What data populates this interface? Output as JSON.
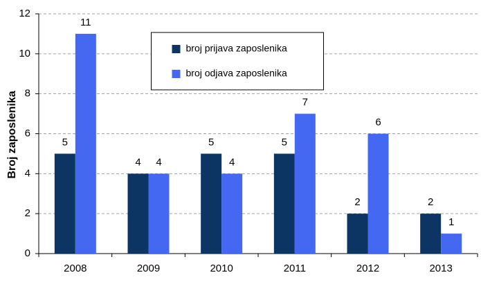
{
  "chart_data": {
    "type": "bar",
    "y_label": "Broj zaposlenika",
    "categories": [
      "2008",
      "2009",
      "2010",
      "2011",
      "2012",
      "2013"
    ],
    "series": [
      {
        "name": "broj prijava zaposlenika",
        "color": "#0d3563",
        "values": [
          5,
          4,
          5,
          5,
          2,
          2
        ]
      },
      {
        "name": "broj odjava zaposlenika",
        "color": "#4468f2",
        "values": [
          11,
          4,
          4,
          7,
          6,
          1
        ]
      }
    ],
    "ylim": [
      0,
      12
    ],
    "yticks": [
      0,
      2,
      4,
      6,
      8,
      10,
      12
    ],
    "grid": true,
    "legend_position": "upper center"
  }
}
